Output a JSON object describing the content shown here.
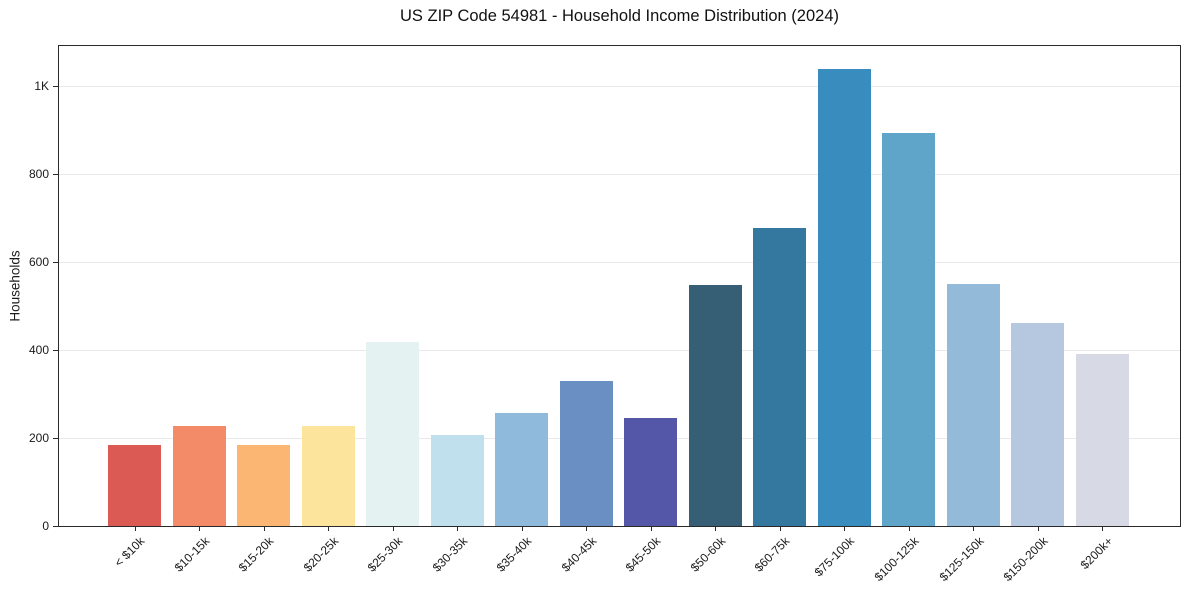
{
  "chart_data": {
    "type": "bar",
    "title": "US ZIP Code 54981 - Household Income Distribution (2024)",
    "xlabel": "",
    "ylabel": "Households",
    "categories": [
      "< $10k",
      "$10-15k",
      "$15-20k",
      "$20-25k",
      "$25-30k",
      "$30-35k",
      "$35-40k",
      "$40-45k",
      "$45-50k",
      "$50-60k",
      "$60-75k",
      "$75-100k",
      "$100-125k",
      "$125-150k",
      "$150-200k",
      "$200k+"
    ],
    "values": [
      183,
      228,
      183,
      227,
      418,
      207,
      257,
      330,
      245,
      548,
      676,
      1038,
      892,
      550,
      462,
      390
    ],
    "bar_colors": [
      "#db5a53",
      "#f48b68",
      "#fbb674",
      "#fce49c",
      "#e5f2f2",
      "#c1e0ee",
      "#90badb",
      "#6a8fc3",
      "#5456a8",
      "#365e74",
      "#35789f",
      "#388cbe",
      "#5fa5c9",
      "#93bad9",
      "#b6c8df",
      "#d7d9e5"
    ],
    "ylim": [
      0,
      1090
    ],
    "yticks": [
      {
        "value": 0,
        "label": "0"
      },
      {
        "value": 200,
        "label": "200"
      },
      {
        "value": 400,
        "label": "400"
      },
      {
        "value": 600,
        "label": "600"
      },
      {
        "value": 800,
        "label": "800"
      },
      {
        "value": 1000,
        "label": "1K"
      }
    ],
    "grid": "horizontal-only",
    "legend": "none",
    "colors": {
      "background": "#ffffff",
      "spine": "#2a2a2a",
      "gridline": "#e9e9e9",
      "text": "#1a1a1a"
    }
  }
}
